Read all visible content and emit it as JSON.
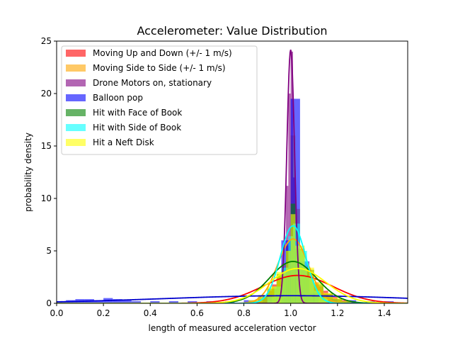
{
  "chart_data": {
    "type": "histogram",
    "title": "Accelerometer: Value Distribution",
    "xlabel": "length of measured acceleration vector",
    "ylabel": "probability density",
    "xlim": [
      0.0,
      1.5
    ],
    "ylim": [
      0,
      25
    ],
    "xticks": [
      "0.0",
      "0.2",
      "0.4",
      "0.6",
      "0.8",
      "1.0",
      "1.2",
      "1.4"
    ],
    "xtick_values": [
      0.0,
      0.2,
      0.4,
      0.6,
      0.8,
      1.0,
      1.2,
      1.4
    ],
    "yticks": [
      "0",
      "5",
      "10",
      "15",
      "20",
      "25"
    ],
    "ytick_values": [
      0,
      5,
      10,
      15,
      20,
      25
    ],
    "grid": false,
    "legend_position": "top-left",
    "series": [
      {
        "name": "Moving Up and Down (+/- 1 m/s)",
        "hist_color": "#ff0000",
        "fit_color": "#ff0000",
        "alpha": 0.6,
        "fit": {
          "mean": 1.03,
          "std": 0.15
        },
        "bins": [
          [
            0.8,
            0.1
          ],
          [
            0.82,
            0.2
          ],
          [
            0.84,
            0.3
          ],
          [
            0.86,
            0.4
          ],
          [
            0.88,
            0.7
          ],
          [
            0.9,
            1.2
          ],
          [
            0.92,
            1.8
          ],
          [
            0.94,
            2.4
          ],
          [
            0.96,
            2.8
          ],
          [
            0.98,
            3.2
          ],
          [
            1.0,
            3.4
          ],
          [
            1.02,
            3.3
          ],
          [
            1.04,
            3.1
          ],
          [
            1.06,
            2.8
          ],
          [
            1.08,
            2.4
          ],
          [
            1.1,
            2.0
          ],
          [
            1.12,
            1.6
          ],
          [
            1.14,
            1.2
          ],
          [
            1.16,
            0.9
          ],
          [
            1.18,
            0.6
          ],
          [
            1.2,
            0.4
          ],
          [
            1.22,
            0.3
          ],
          [
            1.24,
            0.2
          ],
          [
            1.26,
            0.1
          ]
        ]
      },
      {
        "name": "Moving Side to Side (+/- 1 m/s)",
        "hist_color": "#ffa500",
        "fit_color": "#ffa500",
        "alpha": 0.6,
        "fit": {
          "mean": 1.01,
          "std": 0.065
        },
        "bins": [
          [
            0.86,
            0.2
          ],
          [
            0.88,
            0.5
          ],
          [
            0.9,
            1.0
          ],
          [
            0.92,
            1.6
          ],
          [
            0.94,
            2.6
          ],
          [
            0.96,
            3.8
          ],
          [
            0.98,
            5.5
          ],
          [
            1.0,
            16.0
          ],
          [
            1.02,
            9.0
          ],
          [
            1.04,
            5.0
          ],
          [
            1.06,
            3.2
          ],
          [
            1.08,
            2.0
          ],
          [
            1.1,
            1.2
          ],
          [
            1.12,
            0.7
          ],
          [
            1.14,
            0.4
          ],
          [
            1.16,
            0.2
          ]
        ]
      },
      {
        "name": "Drone Motors on, stationary",
        "hist_color": "#800080",
        "fit_color": "#800080",
        "alpha": 0.6,
        "fit": {
          "mean": 1.0,
          "std": 0.0165
        },
        "bins": [
          [
            0.97,
            0.5
          ],
          [
            0.98,
            11.2
          ],
          [
            0.99,
            20.0
          ],
          [
            1.0,
            24.0
          ],
          [
            1.01,
            12.0
          ],
          [
            1.02,
            5.0
          ],
          [
            1.03,
            0.5
          ]
        ]
      },
      {
        "name": "Balloon pop",
        "hist_color": "#0000ff",
        "fit_color": "#0000cd",
        "alpha": 0.6,
        "fit": {
          "mean": 1.0,
          "std": 0.55
        },
        "bins": [
          [
            0.0,
            0.2
          ],
          [
            0.04,
            0.3
          ],
          [
            0.08,
            0.4
          ],
          [
            0.12,
            0.4
          ],
          [
            0.16,
            0.3
          ],
          [
            0.2,
            0.5
          ],
          [
            0.24,
            0.4
          ],
          [
            0.28,
            0.3
          ],
          [
            0.32,
            0.2
          ],
          [
            0.4,
            0.2
          ],
          [
            0.48,
            0.2
          ],
          [
            0.56,
            0.2
          ],
          [
            0.64,
            0.2
          ],
          [
            0.72,
            0.2
          ],
          [
            0.8,
            0.3
          ],
          [
            0.88,
            0.8
          ],
          [
            0.96,
            6.0
          ],
          [
            1.0,
            19.5
          ],
          [
            1.04,
            4.0
          ],
          [
            1.08,
            1.0
          ],
          [
            1.16,
            0.4
          ],
          [
            1.24,
            0.3
          ],
          [
            1.32,
            0.2
          ],
          [
            1.4,
            0.2
          ]
        ]
      },
      {
        "name": "Hit with Face of Book",
        "hist_color": "#008000",
        "fit_color": "#008000",
        "alpha": 0.6,
        "fit": {
          "mean": 1.01,
          "std": 0.1
        },
        "bins": [
          [
            0.82,
            0.2
          ],
          [
            0.86,
            0.6
          ],
          [
            0.9,
            1.4
          ],
          [
            0.94,
            2.8
          ],
          [
            0.98,
            5.0
          ],
          [
            1.0,
            9.5
          ],
          [
            1.02,
            5.2
          ],
          [
            1.06,
            3.2
          ],
          [
            1.1,
            1.8
          ],
          [
            1.14,
            0.9
          ],
          [
            1.18,
            0.4
          ],
          [
            1.22,
            0.2
          ]
        ]
      },
      {
        "name": "Hit with Side of Book",
        "hist_color": "#00ffff",
        "fit_color": "#00ffff",
        "alpha": 0.6,
        "fit": {
          "mean": 1.01,
          "std": 0.054
        },
        "bins": [
          [
            0.9,
            0.6
          ],
          [
            0.93,
            1.6
          ],
          [
            0.96,
            3.4
          ],
          [
            0.99,
            6.4
          ],
          [
            1.01,
            7.6
          ],
          [
            1.04,
            5.0
          ],
          [
            1.07,
            2.6
          ],
          [
            1.1,
            1.2
          ],
          [
            1.13,
            0.5
          ]
        ]
      },
      {
        "name": "Hit a Neft Disk",
        "hist_color": "#ffff00",
        "fit_color": "#ffff00",
        "alpha": 0.6,
        "fit": {
          "mean": 1.03,
          "std": 0.12
        },
        "bins": [
          [
            0.82,
            0.3
          ],
          [
            0.86,
            0.8
          ],
          [
            0.9,
            1.6
          ],
          [
            0.94,
            3.0
          ],
          [
            0.98,
            5.0
          ],
          [
            1.0,
            8.5
          ],
          [
            1.02,
            5.5
          ],
          [
            1.06,
            3.4
          ],
          [
            1.1,
            2.0
          ],
          [
            1.14,
            1.0
          ],
          [
            1.18,
            0.5
          ],
          [
            1.22,
            0.2
          ]
        ]
      }
    ]
  }
}
